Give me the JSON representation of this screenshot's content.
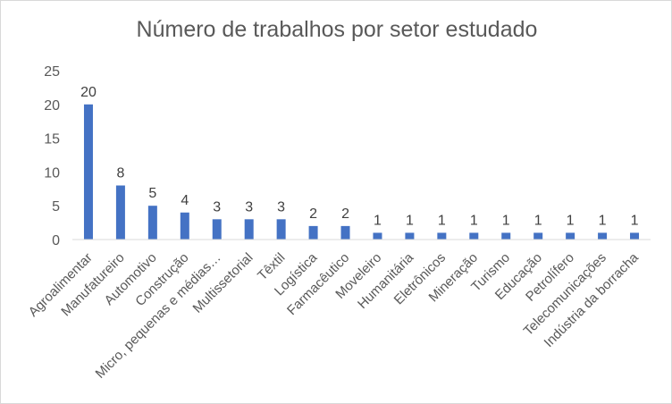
{
  "chart_data": {
    "type": "bar",
    "title": "Número de trabalhos por setor estudado",
    "categories": [
      "Agroalimentar",
      "Manufatureiro",
      "Automotivo",
      "Construção",
      "Micro, pequenas e médias…",
      "Multissetorial",
      "Têxtil",
      "Logística",
      "Farmacêutico",
      "Moveleiro",
      "Humanitária",
      "Eletrônicos",
      "Mineração",
      "Turismo",
      "Educação",
      "Petrolífero",
      "Telecomunicações",
      "Indústria da borracha"
    ],
    "values": [
      20,
      8,
      5,
      4,
      3,
      3,
      3,
      2,
      2,
      1,
      1,
      1,
      1,
      1,
      1,
      1,
      1,
      1
    ],
    "ylim": [
      0,
      25
    ],
    "yticks": [
      0,
      5,
      10,
      15,
      20,
      25
    ],
    "xlabel": "",
    "ylabel": "",
    "grid": false,
    "data_labels": true,
    "bar_color": "#4472c4",
    "text_color": "#595959",
    "axis_color": "#d9d9d9"
  }
}
